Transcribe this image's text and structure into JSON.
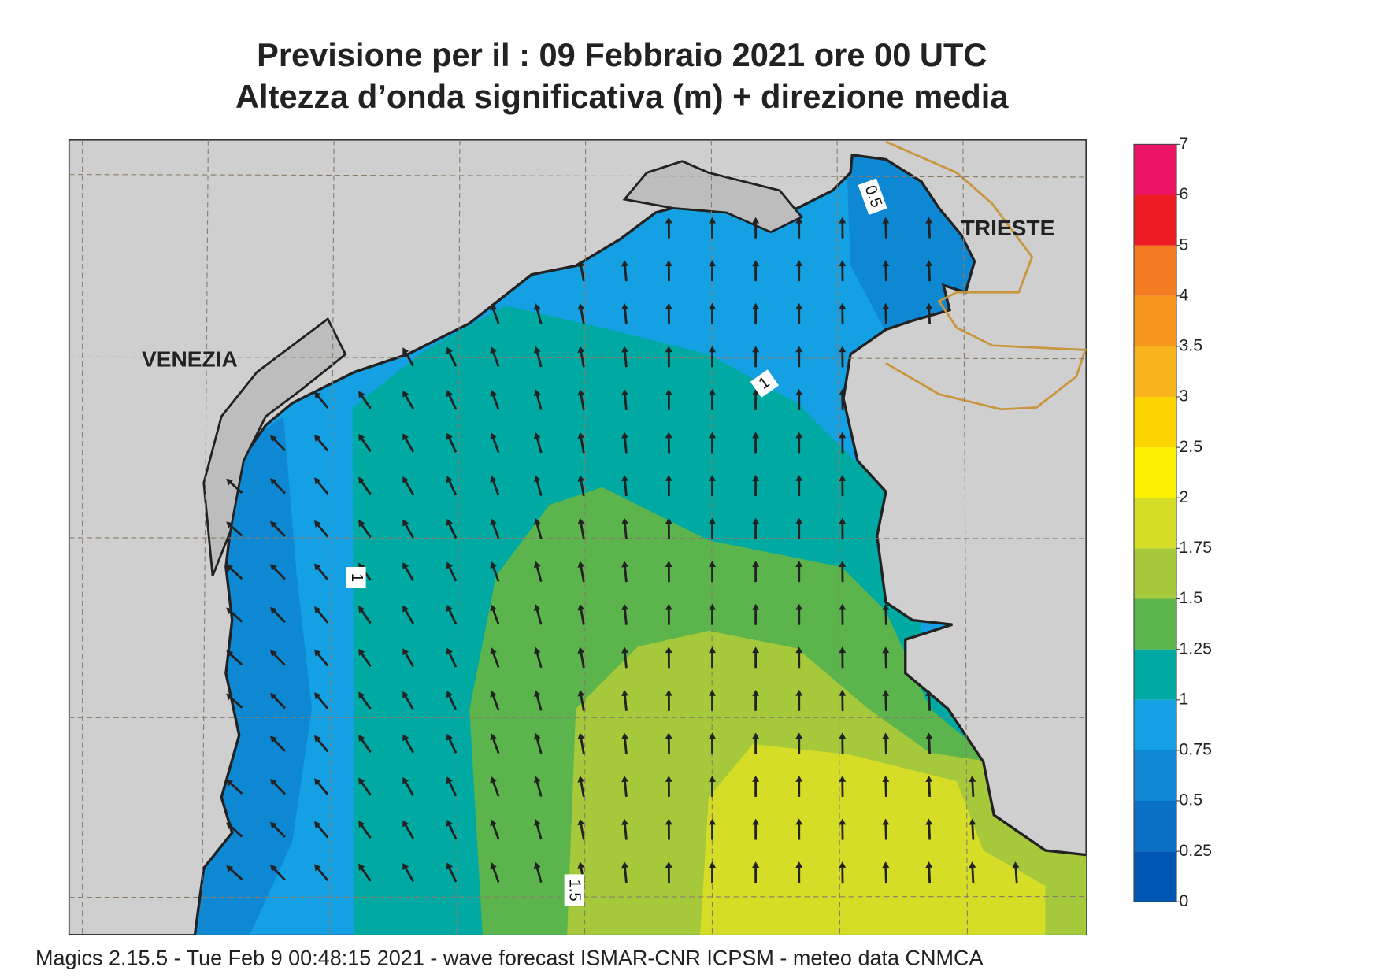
{
  "title": [
    "Previsione per il  :  09  Febbraio 2021   ore 00 UTC",
    "Altezza d’onda significativa (m) + direzione media"
  ],
  "places": [
    "VENEZIA",
    "TRIESTE"
  ],
  "contour_labels": [
    "0.5",
    "1",
    "1",
    "1.5"
  ],
  "colorbar": {
    "levels": [
      0,
      0.25,
      0.5,
      0.75,
      1,
      1.25,
      1.5,
      1.75,
      2,
      2.5,
      3,
      3.5,
      4,
      5,
      6,
      7
    ],
    "colors": [
      "#0057b3",
      "#0a70c4",
      "#0f88d3",
      "#14a0e2",
      "#00aaa2",
      "#5cb54c",
      "#a6c93b",
      "#d6dd26",
      "#fff200",
      "#fcd400",
      "#f9b31c",
      "#f7961d",
      "#f47a21",
      "#ed1c24",
      "#ec1466"
    ]
  },
  "footer": "Magics 2.15.5 - Tue Feb  9 00:48:15 2021 - wave forecast  ISMAR-CNR  ICPSM - meteo data   CNMCA"
}
